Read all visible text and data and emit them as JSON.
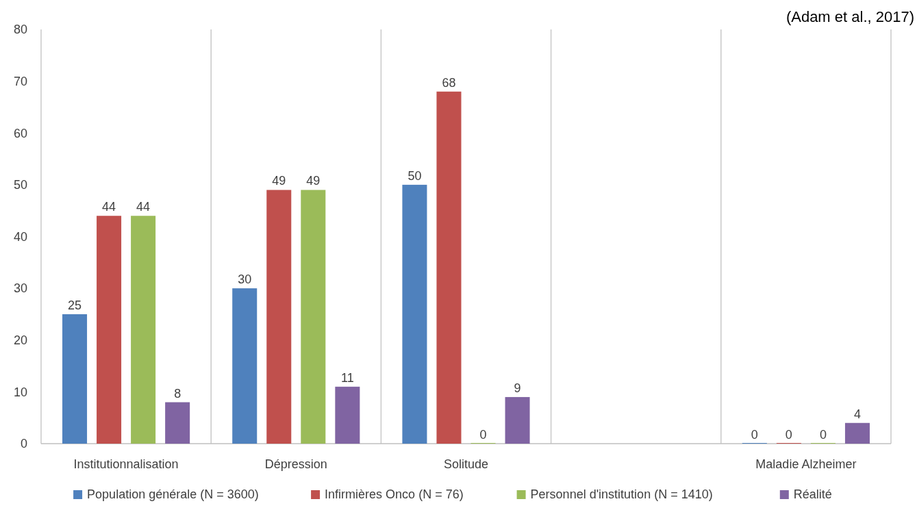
{
  "chart_data": {
    "type": "bar",
    "categories": [
      "Institutionnalisation",
      "Dépression",
      "Solitude",
      null,
      "Maladie Alzheimer"
    ],
    "series": [
      {
        "name": "Population générale (N = 3600)",
        "color": "#4f81bd",
        "values": [
          25,
          30,
          50,
          null,
          0
        ]
      },
      {
        "name": "Infirmières Onco (N = 76)",
        "color": "#c0504d",
        "values": [
          44,
          49,
          68,
          null,
          0
        ]
      },
      {
        "name": "Personnel d'institution (N = 1410)",
        "color": "#9bbb59",
        "values": [
          44,
          49,
          0,
          null,
          0
        ]
      },
      {
        "name": "Réalité",
        "color": "#8064a2",
        "values": [
          8,
          11,
          9,
          null,
          4
        ]
      }
    ],
    "ylim": [
      0,
      80
    ],
    "yticks": [
      0,
      10,
      20,
      30,
      40,
      50,
      60,
      70,
      80
    ],
    "grid": "x",
    "legend": "bottom",
    "data_labels": true,
    "annotations": [
      "(Adam et al., 2017)"
    ]
  }
}
